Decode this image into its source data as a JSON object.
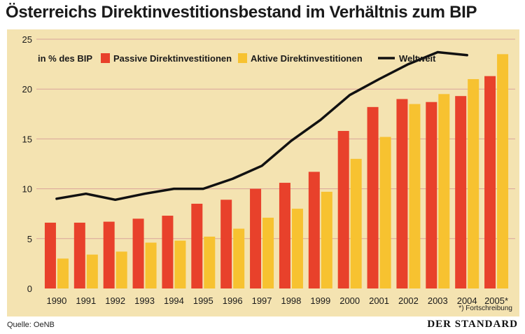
{
  "chart_data": {
    "type": "bar",
    "title": "Österreichs Direktinvestitionsbestand im Verhältnis zum BIP",
    "unit_label": "in % des BIP",
    "categories": [
      "1990",
      "1991",
      "1992",
      "1993",
      "1994",
      "1995",
      "1996",
      "1997",
      "1998",
      "1999",
      "2000",
      "2001",
      "2002",
      "2003",
      "2004",
      "2005*"
    ],
    "series": [
      {
        "name": "Passive Direktinvestitionen",
        "kind": "bar",
        "color": "#e8412b",
        "values": [
          6.6,
          6.6,
          6.7,
          7.0,
          7.3,
          8.5,
          8.9,
          10.0,
          10.6,
          11.7,
          15.8,
          18.2,
          19.0,
          18.7,
          19.3,
          21.3
        ]
      },
      {
        "name": "Aktive Direktinvestitionen",
        "kind": "bar",
        "color": "#f7c230",
        "values": [
          3.0,
          3.4,
          3.7,
          4.6,
          4.8,
          5.2,
          6.0,
          7.1,
          8.0,
          9.7,
          13.0,
          15.2,
          18.5,
          19.5,
          21.0,
          23.5
        ]
      },
      {
        "name": "Weltweit",
        "kind": "line",
        "color": "#111111",
        "values": [
          9.0,
          9.5,
          8.9,
          9.5,
          10.0,
          10.0,
          11.0,
          12.3,
          14.8,
          16.9,
          19.4,
          21.0,
          22.5,
          23.7,
          23.4,
          null
        ]
      }
    ],
    "ylim": [
      0,
      25
    ],
    "yticks": [
      0,
      5,
      10,
      15,
      20,
      25
    ],
    "grid": true,
    "legend_position": "top",
    "footnote": "*) Fortschreibung"
  },
  "source": "Quelle: OeNB",
  "brand": "DER STANDARD"
}
